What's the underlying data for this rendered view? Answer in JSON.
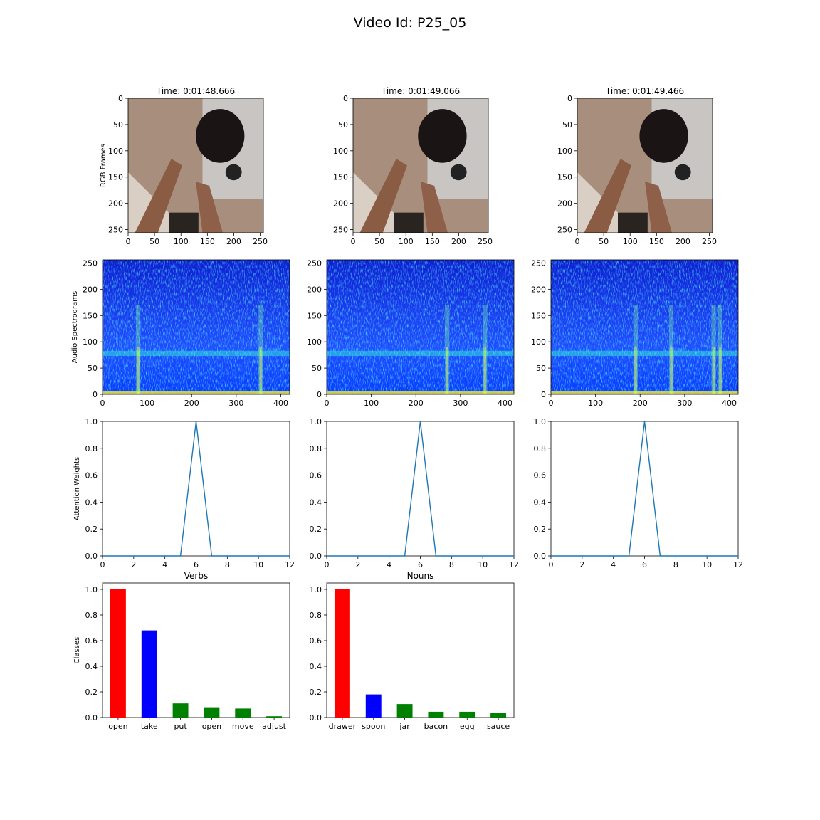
{
  "figure": {
    "title": "Video Id: P25_05"
  },
  "row_labels": {
    "rgb": "RGB Frames",
    "spec": "Audio Spectrograms",
    "attn": "Attention Weights",
    "classes": "Classes"
  },
  "frames": [
    {
      "title": "Time: 0:01:48.666"
    },
    {
      "title": "Time: 0:01:49.066"
    },
    {
      "title": "Time: 0:01:49.466"
    }
  ],
  "chart_data": [
    {
      "type": "image",
      "panel": "rgb-frame-1",
      "title": "Time: 0:01:48.666",
      "ylabel": "RGB Frames",
      "xlim": [
        0,
        256
      ],
      "ylim": [
        256,
        0
      ],
      "xticks": [
        0,
        50,
        100,
        150,
        200,
        250
      ],
      "yticks": [
        0,
        50,
        100,
        150,
        200,
        250
      ]
    },
    {
      "type": "image",
      "panel": "rgb-frame-2",
      "title": "Time: 0:01:49.066",
      "xlim": [
        0,
        256
      ],
      "ylim": [
        256,
        0
      ],
      "xticks": [
        0,
        50,
        100,
        150,
        200,
        250
      ],
      "yticks": [
        0,
        50,
        100,
        150,
        200,
        250
      ]
    },
    {
      "type": "image",
      "panel": "rgb-frame-3",
      "title": "Time: 0:01:49.466",
      "xlim": [
        0,
        256
      ],
      "ylim": [
        256,
        0
      ],
      "xticks": [
        0,
        50,
        100,
        150,
        200,
        250
      ],
      "yticks": [
        0,
        50,
        100,
        150,
        200,
        250
      ]
    },
    {
      "type": "heatmap",
      "panel": "spectrogram-1",
      "ylabel": "Audio Spectrograms",
      "xlim": [
        0,
        420
      ],
      "ylim": [
        0,
        256
      ],
      "xticks": [
        0,
        100,
        200,
        300,
        400
      ],
      "yticks": [
        0,
        50,
        100,
        150,
        200,
        250
      ],
      "bright_bands_y": [
        78
      ],
      "bright_columns_x": [
        355,
        80
      ]
    },
    {
      "type": "heatmap",
      "panel": "spectrogram-2",
      "xlim": [
        0,
        420
      ],
      "ylim": [
        0,
        256
      ],
      "xticks": [
        0,
        100,
        200,
        300,
        400
      ],
      "yticks": [
        0,
        50,
        100,
        150,
        200,
        250
      ],
      "bright_bands_y": [
        78
      ],
      "bright_columns_x": [
        270,
        355
      ]
    },
    {
      "type": "heatmap",
      "panel": "spectrogram-3",
      "xlim": [
        0,
        420
      ],
      "ylim": [
        0,
        256
      ],
      "xticks": [
        0,
        100,
        200,
        300,
        400
      ],
      "yticks": [
        0,
        50,
        100,
        150,
        200,
        250
      ],
      "bright_bands_y": [
        78
      ],
      "bright_columns_x": [
        190,
        270,
        365,
        380
      ]
    },
    {
      "type": "line",
      "panel": "attention-1",
      "ylabel": "Attention Weights",
      "x": [
        0,
        1,
        2,
        3,
        4,
        5,
        6,
        7,
        8,
        9,
        10,
        11,
        12
      ],
      "y": [
        0,
        0,
        0,
        0,
        0,
        0,
        1,
        0,
        0,
        0,
        0,
        0,
        0
      ],
      "xlim": [
        0,
        12
      ],
      "ylim": [
        0,
        1
      ],
      "xticks": [
        0,
        2,
        4,
        6,
        8,
        10,
        12
      ],
      "yticks": [
        0.0,
        0.2,
        0.4,
        0.6,
        0.8,
        1.0
      ],
      "color": "#1f77b4"
    },
    {
      "type": "line",
      "panel": "attention-2",
      "x": [
        0,
        1,
        2,
        3,
        4,
        5,
        6,
        7,
        8,
        9,
        10,
        11,
        12
      ],
      "y": [
        0,
        0,
        0,
        0,
        0,
        0,
        1,
        0,
        0,
        0,
        0,
        0,
        0
      ],
      "xlim": [
        0,
        12
      ],
      "ylim": [
        0,
        1
      ],
      "xticks": [
        0,
        2,
        4,
        6,
        8,
        10,
        12
      ],
      "yticks": [
        0.0,
        0.2,
        0.4,
        0.6,
        0.8,
        1.0
      ],
      "color": "#1f77b4"
    },
    {
      "type": "line",
      "panel": "attention-3",
      "x": [
        0,
        1,
        2,
        3,
        4,
        5,
        6,
        7,
        8,
        9,
        10,
        11,
        12
      ],
      "y": [
        0,
        0,
        0,
        0,
        0,
        0,
        1,
        0,
        0,
        0,
        0,
        0,
        0
      ],
      "xlim": [
        0,
        12
      ],
      "ylim": [
        0,
        1
      ],
      "xticks": [
        0,
        2,
        4,
        6,
        8,
        10,
        12
      ],
      "yticks": [
        0.0,
        0.2,
        0.4,
        0.6,
        0.8,
        1.0
      ],
      "color": "#1f77b4"
    },
    {
      "type": "bar",
      "panel": "verbs",
      "title": "Verbs",
      "ylabel": "Classes",
      "categories": [
        "open",
        "take",
        "put",
        "open",
        "move",
        "adjust"
      ],
      "values": [
        1.0,
        0.68,
        0.11,
        0.08,
        0.07,
        0.01
      ],
      "colors": [
        "#ff0000",
        "#0000ff",
        "#008000",
        "#008000",
        "#008000",
        "#008000"
      ],
      "ylim": [
        0,
        1.05
      ],
      "yticks": [
        0.0,
        0.2,
        0.4,
        0.6,
        0.8,
        1.0
      ]
    },
    {
      "type": "bar",
      "panel": "nouns",
      "title": "Nouns",
      "categories": [
        "drawer",
        "spoon",
        "jar",
        "bacon",
        "egg",
        "sauce"
      ],
      "values": [
        1.0,
        0.18,
        0.105,
        0.045,
        0.045,
        0.035
      ],
      "colors": [
        "#ff0000",
        "#0000ff",
        "#008000",
        "#008000",
        "#008000",
        "#008000"
      ],
      "ylim": [
        0,
        1.05
      ],
      "yticks": [
        0.0,
        0.2,
        0.4,
        0.6,
        0.8,
        1.0
      ]
    }
  ]
}
